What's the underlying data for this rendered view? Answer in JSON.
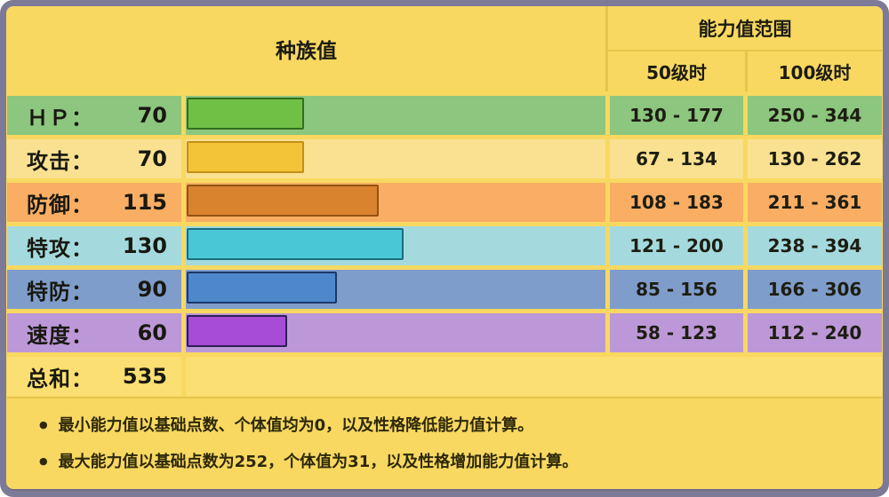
{
  "panel": {
    "border_color": "#7c7a96",
    "background": "#f8d861",
    "grid_line_color": "#e6c54c"
  },
  "chart_data": {
    "type": "bar",
    "title": "种族值",
    "range_header": "能力值范围",
    "columns": [
      "50级时",
      "100级时"
    ],
    "xlim": [
      0,
      255
    ],
    "rows": [
      {
        "label": "ＨＰ：",
        "value": 70,
        "range50": "130 - 177",
        "range100": "250 - 344",
        "row_color": "#8dc67e",
        "bar_color": "#70c046",
        "bar_border": "#336f1f"
      },
      {
        "label": "攻击：",
        "value": 70,
        "range50": "67 - 134",
        "range100": "130 - 262",
        "row_color": "#f9e191",
        "bar_color": "#f3c437",
        "bar_border": "#c29016"
      },
      {
        "label": "防御：",
        "value": 115,
        "range50": "108 - 183",
        "range100": "211 - 361",
        "row_color": "#f9ae64",
        "bar_color": "#d9832f",
        "bar_border": "#94520f"
      },
      {
        "label": "特攻：",
        "value": 130,
        "range50": "121 - 200",
        "range100": "238 - 394",
        "row_color": "#a4dade",
        "bar_color": "#49c7d7",
        "bar_border": "#1a6f7d"
      },
      {
        "label": "特防：",
        "value": 90,
        "range50": "85 - 156",
        "range100": "166 - 306",
        "row_color": "#7f9dcb",
        "bar_color": "#4e87cb",
        "bar_border": "#1c3869"
      },
      {
        "label": "速度：",
        "value": 60,
        "range50": "58 - 123",
        "range100": "112 - 240",
        "row_color": "#bd98d8",
        "bar_color": "#a64cd6",
        "bar_border": "#2c1f55"
      }
    ],
    "total": {
      "label": "总和：",
      "value": 535
    }
  },
  "notes": {
    "bullet": "●",
    "items": [
      "最小能力值以基础点数、个体值均为0，以及性格降低能力值计算。",
      "最大能力值以基础点数为252，个体值为31，以及性格增加能力值计算。"
    ]
  }
}
